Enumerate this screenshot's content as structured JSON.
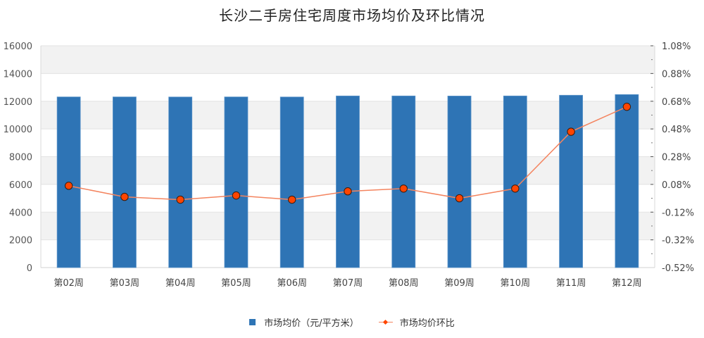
{
  "title": "长沙二手房住宅周度市场均价及环比情况",
  "colors": {
    "bar": "#2e74b5",
    "line": "#f4845f",
    "marker": "#ff4500",
    "marker_border": "#3a1a0a",
    "grid_band": "#f2f2f2",
    "grid_line": "#e3e3e3"
  },
  "legend": {
    "bar_label": "市场均价（元/平方米）",
    "line_label": "市场均价环比"
  },
  "chart_data": {
    "type": "bar",
    "title": "长沙二手房住宅周度市场均价及环比情况",
    "categories": [
      "第02周",
      "第03周",
      "第04周",
      "第05周",
      "第06周",
      "第07周",
      "第08周",
      "第09周",
      "第10周",
      "第11周",
      "第12周"
    ],
    "series": [
      {
        "name": "市场均价（元/平方米）",
        "type": "bar",
        "axis": "left",
        "values": [
          12310,
          12310,
          12305,
          12310,
          12305,
          12380,
          12380,
          12375,
          12380,
          12430,
          12480
        ]
      },
      {
        "name": "市场均价环比",
        "type": "line",
        "axis": "right",
        "unit": "%",
        "values": [
          0.07,
          -0.01,
          -0.03,
          0.0,
          -0.03,
          0.03,
          0.05,
          -0.02,
          0.05,
          0.46,
          0.64
        ]
      }
    ],
    "left_axis": {
      "min": 0,
      "max": 16000,
      "ticks": [
        "0",
        "2000",
        "4000",
        "6000",
        "8000",
        "10000",
        "12000",
        "14000",
        "16000"
      ]
    },
    "right_axis": {
      "min": -0.52,
      "max": 1.08,
      "ticks": [
        "-0.52%",
        "-0.32%",
        "-0.12%",
        "0.08%",
        "0.28%",
        "0.48%",
        "0.68%",
        "0.88%",
        "1.08%"
      ]
    },
    "xlabel": "",
    "ylabel": "",
    "grid": true,
    "legend_position": "bottom"
  }
}
